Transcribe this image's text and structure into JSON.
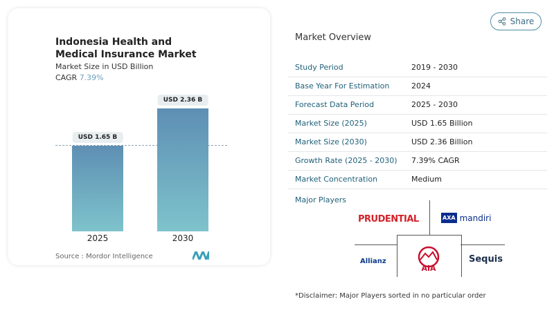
{
  "share_label": "Share",
  "chart_data": {
    "type": "bar",
    "title": "Indonesia Health and Medical Insurance Market",
    "subtitle": "Market Size in USD Billion",
    "cagr_label": "CAGR",
    "cagr_value": "7.39%",
    "categories": [
      "2025",
      "2030"
    ],
    "values": [
      1.65,
      2.36
    ],
    "data_labels": [
      "USD 1.65 B",
      "USD 2.36 B"
    ],
    "bar_color_top": "#5e8fb3",
    "bar_color_bottom": "#7ec3cc",
    "source": "Source :  Mordor Intelligence"
  },
  "overview": {
    "title": "Market Overview",
    "rows": [
      {
        "k": "Study Period",
        "v": "2019 - 2030"
      },
      {
        "k": "Base Year For Estimation",
        "v": "2024"
      },
      {
        "k": "Forecast Data Period",
        "v": "2025 - 2030"
      },
      {
        "k": "Market Size (2025)",
        "v": "USD 1.65 Billion"
      },
      {
        "k": "Market Size (2030)",
        "v": "USD 2.36 Billion"
      },
      {
        "k": "Growth Rate (2025 - 2030)",
        "v": "7.39% CAGR"
      },
      {
        "k": "Market Concentration",
        "v": "Medium"
      }
    ],
    "major_players_title": "Major Players",
    "players": [
      "PRUDENTIAL",
      "AXA mandiri",
      "Allianz",
      "AIA",
      "Sequis"
    ],
    "disclaimer": "*Disclaimer: Major Players sorted in no particular order"
  }
}
